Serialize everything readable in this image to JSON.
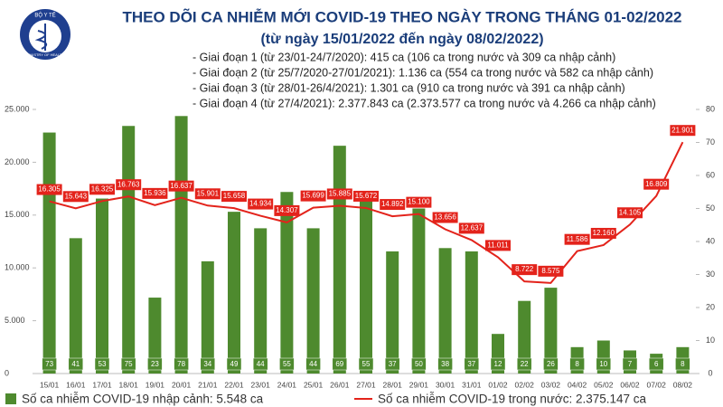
{
  "logo": {
    "text": "BỘ Y TẾ",
    "subtext": "MINISTRY OF HEALTH"
  },
  "chart_data": {
    "type": "bar",
    "title": "THEO DÕI CA NHIỄM MỚI COVID-19 THEO NGÀY TRONG THÁNG 01-02/2022",
    "subtitle": "(từ ngày 15/01/2022 đến ngày 08/02/2022)",
    "notes": [
      "- Giai đoạn 1 (từ 23/01-24/7/2020): 415 ca (106 ca trong nước và 309 ca nhập cảnh)",
      "- Giai đoạn 2 (từ 25/7/2020-27/01/2021): 1.136 ca (554 ca trong nước và 582 ca nhập cảnh)",
      "- Giai đoạn 3 (từ 28/01-26/4/2021): 1.301 ca (910 ca trong nước và 391 ca nhập cảnh)",
      "- Giai đoạn 4 (từ 27/4/2021): 2.377.843 ca (2.373.577 ca trong nước và 4.266 ca nhập cảnh)"
    ],
    "categories": [
      "15/01",
      "16/01",
      "17/01",
      "18/01",
      "19/01",
      "20/01",
      "21/01",
      "22/01",
      "23/01",
      "24/01",
      "25/01",
      "26/01",
      "27/01",
      "28/01",
      "29/01",
      "30/01",
      "31/01",
      "01/02",
      "02/02",
      "03/02",
      "04/02",
      "05/02",
      "06/02",
      "07/02",
      "08/02"
    ],
    "series": [
      {
        "name": "Số ca nhiễm COVID-19 nhập cảnh: 5.548 ca",
        "type": "bar",
        "axis": "y2",
        "color": "#4e8a2e",
        "values": [
          73,
          41,
          53,
          75,
          23,
          78,
          34,
          49,
          44,
          55,
          44,
          69,
          55,
          37,
          50,
          38,
          37,
          12,
          22,
          26,
          8,
          10,
          7,
          6,
          8
        ]
      },
      {
        "name": "Số ca nhiễm COVID-19 trong nước: 2.375.147 ca",
        "type": "line",
        "color": "#e3231b",
        "values": [
          16305,
          15643,
          16325,
          16763,
          15936,
          16637,
          15901,
          15658,
          14934,
          14307,
          15699,
          15885,
          15672,
          14892,
          15100,
          13656,
          12637,
          11011,
          8722,
          8575,
          11586,
          12160,
          14105,
          16809,
          21901
        ],
        "value_labels": [
          "16.305",
          "15.643",
          "16.325",
          "16.763",
          "15.936",
          "16.637",
          "15.901",
          "15.658",
          "14.934",
          "14.307",
          "15.699",
          "15.885",
          "15.672",
          "14.892",
          "15.100",
          "13.656",
          "12.637",
          "11.011",
          "8.722",
          "8.575",
          "11.586",
          "12.160",
          "14.105",
          "16.809",
          "21.901"
        ]
      }
    ],
    "ylim": [
      0,
      25000
    ],
    "yticks": [
      0,
      {
        "value": 5000,
        "label": "5.000"
      },
      {
        "value": 10000,
        "label": "10.000"
      },
      {
        "value": 15000,
        "label": "15.000"
      },
      {
        "value": 20000,
        "label": "20.000"
      },
      {
        "value": 25000,
        "label": "25.000"
      }
    ],
    "y2lim": [
      0,
      80
    ],
    "y2ticks": [
      0,
      10,
      20,
      30,
      40,
      50,
      60,
      70,
      80
    ]
  }
}
